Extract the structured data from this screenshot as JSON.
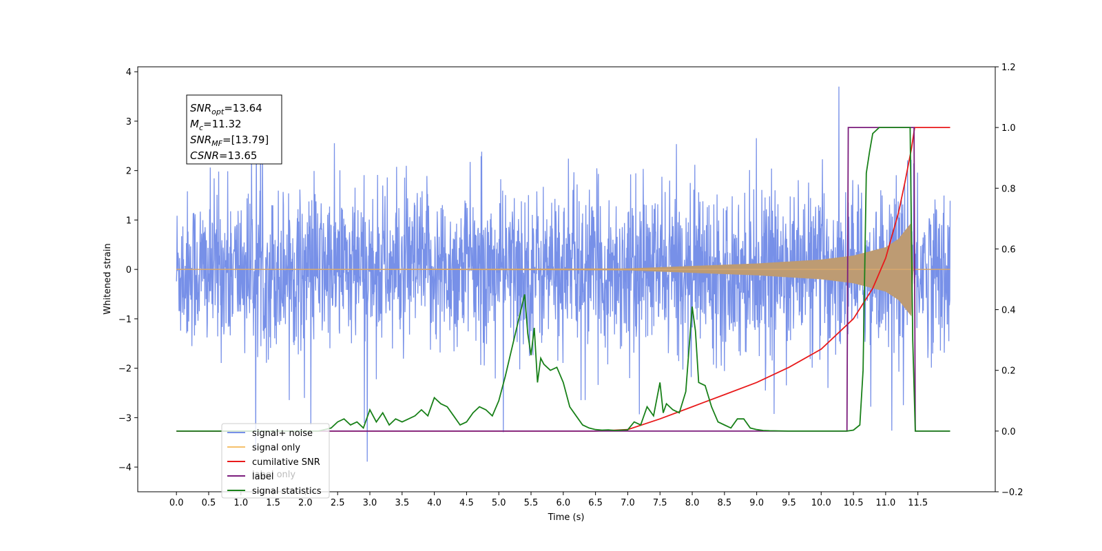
{
  "chart_data": {
    "type": "line",
    "xlabel": "Time (s)",
    "ylabel": "Whitened strain",
    "xlim": [
      -0.6,
      12.7
    ],
    "ylim": [
      -4.5,
      4.1
    ],
    "y2lim": [
      -0.2,
      1.2
    ],
    "x_ticks": [
      "0.0",
      "0.5",
      "1.0",
      "1.5",
      "2.0",
      "2.5",
      "3.0",
      "3.5",
      "4.0",
      "4.5",
      "5.0",
      "5.5",
      "6.0",
      "6.5",
      "7.0",
      "7.5",
      "8.0",
      "8.5",
      "9.0",
      "9.5",
      "10.0",
      "10.5",
      "11.0",
      "11.5"
    ],
    "y_ticks": [
      "−4",
      "−3",
      "−2",
      "−1",
      "0",
      "1",
      "2",
      "3",
      "4"
    ],
    "y2_ticks": [
      "−0.2",
      "0.0",
      "0.2",
      "0.4",
      "0.6",
      "0.8",
      "1.0",
      "1.2"
    ],
    "annotation": {
      "lines": [
        {
          "sym": "SNR",
          "sub": "opt",
          "value": "=13.64"
        },
        {
          "sym": "M",
          "sub": "c",
          "value": "=11.32"
        },
        {
          "sym": "SNR",
          "sub": "MF",
          "value": "=[13.79]"
        },
        {
          "sym": "CSNR",
          "sub": "",
          "value": "=13.65"
        }
      ]
    },
    "legend": {
      "placement": "lower-left",
      "entries": [
        {
          "label": "signal+ noise",
          "color": "#7790e8"
        },
        {
          "label": "signal only",
          "color": "#f5c06a"
        },
        {
          "label": "cumilative SNR",
          "color": "#e8191a"
        },
        {
          "label": "label",
          "color": "#7b1c7c"
        },
        {
          "label": "signal statistics",
          "color": "#188018"
        }
      ],
      "ghost_text": "label only"
    },
    "series": [
      {
        "name": "signal+ noise",
        "axis": "left",
        "kind": "noise_band",
        "x_range": [
          0.0,
          12.0
        ],
        "core_amplitude": 1.3,
        "spike_max": 3.7,
        "spike_min": -4.1
      },
      {
        "name": "signal only",
        "axis": "left",
        "kind": "chirp_envelope",
        "envelope": {
          "x": [
            0.0,
            7.0,
            8.0,
            9.0,
            10.0,
            10.5,
            11.0,
            11.2,
            11.4,
            11.43,
            11.5,
            12.0
          ],
          "amplitude": [
            0.0,
            0.02,
            0.07,
            0.12,
            0.2,
            0.28,
            0.45,
            0.62,
            0.95,
            0.02,
            0.0,
            0.0
          ]
        }
      },
      {
        "name": "cumilative SNR",
        "axis": "right",
        "x": [
          0.0,
          6.5,
          7.0,
          7.5,
          8.0,
          8.5,
          9.0,
          9.5,
          10.0,
          10.5,
          10.8,
          11.0,
          11.2,
          11.3,
          11.4,
          11.45,
          12.0
        ],
        "y": [
          0.0,
          0.0,
          0.005,
          0.04,
          0.08,
          0.12,
          0.16,
          0.21,
          0.27,
          0.37,
          0.47,
          0.57,
          0.72,
          0.82,
          0.93,
          1.0,
          1.0
        ]
      },
      {
        "name": "label",
        "axis": "right",
        "x": [
          0.0,
          10.4,
          10.42,
          11.44,
          11.46,
          12.0
        ],
        "y": [
          0.0,
          0.0,
          1.0,
          1.0,
          0.0,
          0.0
        ]
      },
      {
        "name": "signal statistics",
        "axis": "right",
        "x": [
          0.0,
          2.2,
          2.3,
          2.4,
          2.5,
          2.6,
          2.7,
          2.8,
          2.9,
          3.0,
          3.1,
          3.2,
          3.3,
          3.4,
          3.5,
          3.6,
          3.7,
          3.8,
          3.9,
          4.0,
          4.1,
          4.2,
          4.3,
          4.4,
          4.5,
          4.6,
          4.7,
          4.8,
          4.9,
          5.0,
          5.1,
          5.2,
          5.3,
          5.4,
          5.45,
          5.5,
          5.55,
          5.6,
          5.65,
          5.7,
          5.8,
          5.9,
          6.0,
          6.1,
          6.2,
          6.3,
          6.4,
          6.5,
          6.6,
          6.7,
          6.8,
          6.9,
          7.0,
          7.1,
          7.2,
          7.3,
          7.4,
          7.5,
          7.55,
          7.6,
          7.7,
          7.8,
          7.9,
          8.0,
          8.05,
          8.1,
          8.2,
          8.3,
          8.4,
          8.5,
          8.6,
          8.7,
          8.8,
          8.9,
          9.0,
          9.1,
          9.2,
          9.5,
          10.0,
          10.4,
          10.5,
          10.6,
          10.65,
          10.7,
          10.75,
          10.8,
          10.9,
          11.0,
          11.1,
          11.2,
          11.38,
          11.42,
          11.46,
          11.5,
          12.0
        ],
        "y": [
          0.0,
          0.0,
          0.005,
          0.01,
          0.03,
          0.04,
          0.02,
          0.03,
          0.01,
          0.07,
          0.03,
          0.06,
          0.02,
          0.04,
          0.03,
          0.04,
          0.05,
          0.07,
          0.05,
          0.11,
          0.09,
          0.08,
          0.05,
          0.02,
          0.03,
          0.06,
          0.08,
          0.07,
          0.05,
          0.1,
          0.18,
          0.27,
          0.36,
          0.45,
          0.32,
          0.25,
          0.34,
          0.16,
          0.24,
          0.22,
          0.2,
          0.21,
          0.16,
          0.08,
          0.05,
          0.02,
          0.01,
          0.005,
          0.003,
          0.004,
          0.002,
          0.003,
          0.004,
          0.03,
          0.02,
          0.08,
          0.05,
          0.16,
          0.06,
          0.09,
          0.07,
          0.06,
          0.13,
          0.41,
          0.33,
          0.16,
          0.15,
          0.08,
          0.03,
          0.02,
          0.01,
          0.04,
          0.04,
          0.01,
          0.005,
          0.002,
          0.001,
          0.0,
          0.0,
          0.0,
          0.003,
          0.02,
          0.2,
          0.85,
          0.92,
          0.98,
          1.0,
          1.0,
          1.0,
          1.0,
          1.0,
          0.3,
          0.0,
          0.0,
          0.0
        ]
      }
    ]
  }
}
